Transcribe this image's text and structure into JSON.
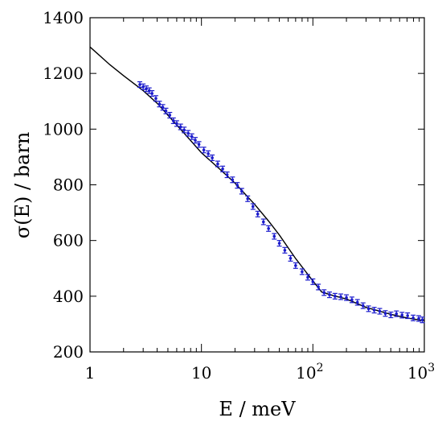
{
  "chart_data": {
    "type": "scatter",
    "xlabel": "E / meV",
    "ylabel": "σ(E) / barn",
    "xscale": "log",
    "xlim": [
      1,
      1000
    ],
    "ylim": [
      200,
      1400
    ],
    "x_ticks": [
      {
        "value": 1,
        "label": "1"
      },
      {
        "value": 10,
        "label": "10"
      },
      {
        "value": 100,
        "label": "10",
        "exp": "2"
      },
      {
        "value": 1000,
        "label": "10",
        "exp": "3"
      }
    ],
    "y_ticks": [
      {
        "value": 200,
        "label": "200"
      },
      {
        "value": 400,
        "label": "400"
      },
      {
        "value": 600,
        "label": "600"
      },
      {
        "value": 800,
        "label": "800"
      },
      {
        "value": 1000,
        "label": "1000"
      },
      {
        "value": 1200,
        "label": "1200"
      },
      {
        "value": 1400,
        "label": "1400"
      }
    ],
    "grid": false,
    "colors": {
      "data": "#1a1acc",
      "fit": "#000000"
    },
    "series": [
      {
        "style": "line",
        "x": [
          1,
          1.5,
          2,
          3,
          4,
          5,
          7,
          10,
          15,
          20,
          30,
          40,
          50,
          70,
          100,
          120,
          150,
          200,
          300,
          500,
          700,
          1000
        ],
        "y": [
          1295,
          1232,
          1192,
          1138,
          1093,
          1050,
          985,
          915,
          852,
          806,
          730,
          670,
          620,
          535,
          455,
          415,
          403,
          390,
          360,
          335,
          322,
          312
        ]
      },
      {
        "style": "points-errorbars",
        "x": [
          2.8,
          3.0,
          3.2,
          3.4,
          3.6,
          3.9,
          4.2,
          4.5,
          4.8,
          5.2,
          5.6,
          6.0,
          6.5,
          7.0,
          7.6,
          8.2,
          8.8,
          9.5,
          10.5,
          11.5,
          12.5,
          14,
          15.5,
          17,
          19,
          21,
          23,
          26,
          29,
          32,
          36,
          40,
          45,
          50,
          56,
          63,
          70,
          80,
          90,
          100,
          112,
          126,
          141,
          158,
          178,
          200,
          224,
          251,
          282,
          316,
          355,
          398,
          447,
          501,
          562,
          631,
          708,
          794,
          891,
          960
        ],
        "y": [
          1160,
          1152,
          1145,
          1138,
          1128,
          1110,
          1090,
          1078,
          1065,
          1050,
          1030,
          1020,
          1008,
          997,
          985,
          973,
          960,
          945,
          925,
          912,
          897,
          875,
          857,
          836,
          818,
          798,
          777,
          750,
          722,
          695,
          667,
          643,
          615,
          590,
          565,
          536,
          510,
          488,
          468,
          452,
          433,
          413,
          405,
          400,
          398,
          395,
          387,
          378,
          366,
          355,
          350,
          346,
          338,
          333,
          337,
          332,
          330,
          322,
          320,
          315
        ],
        "err": 10
      }
    ]
  }
}
